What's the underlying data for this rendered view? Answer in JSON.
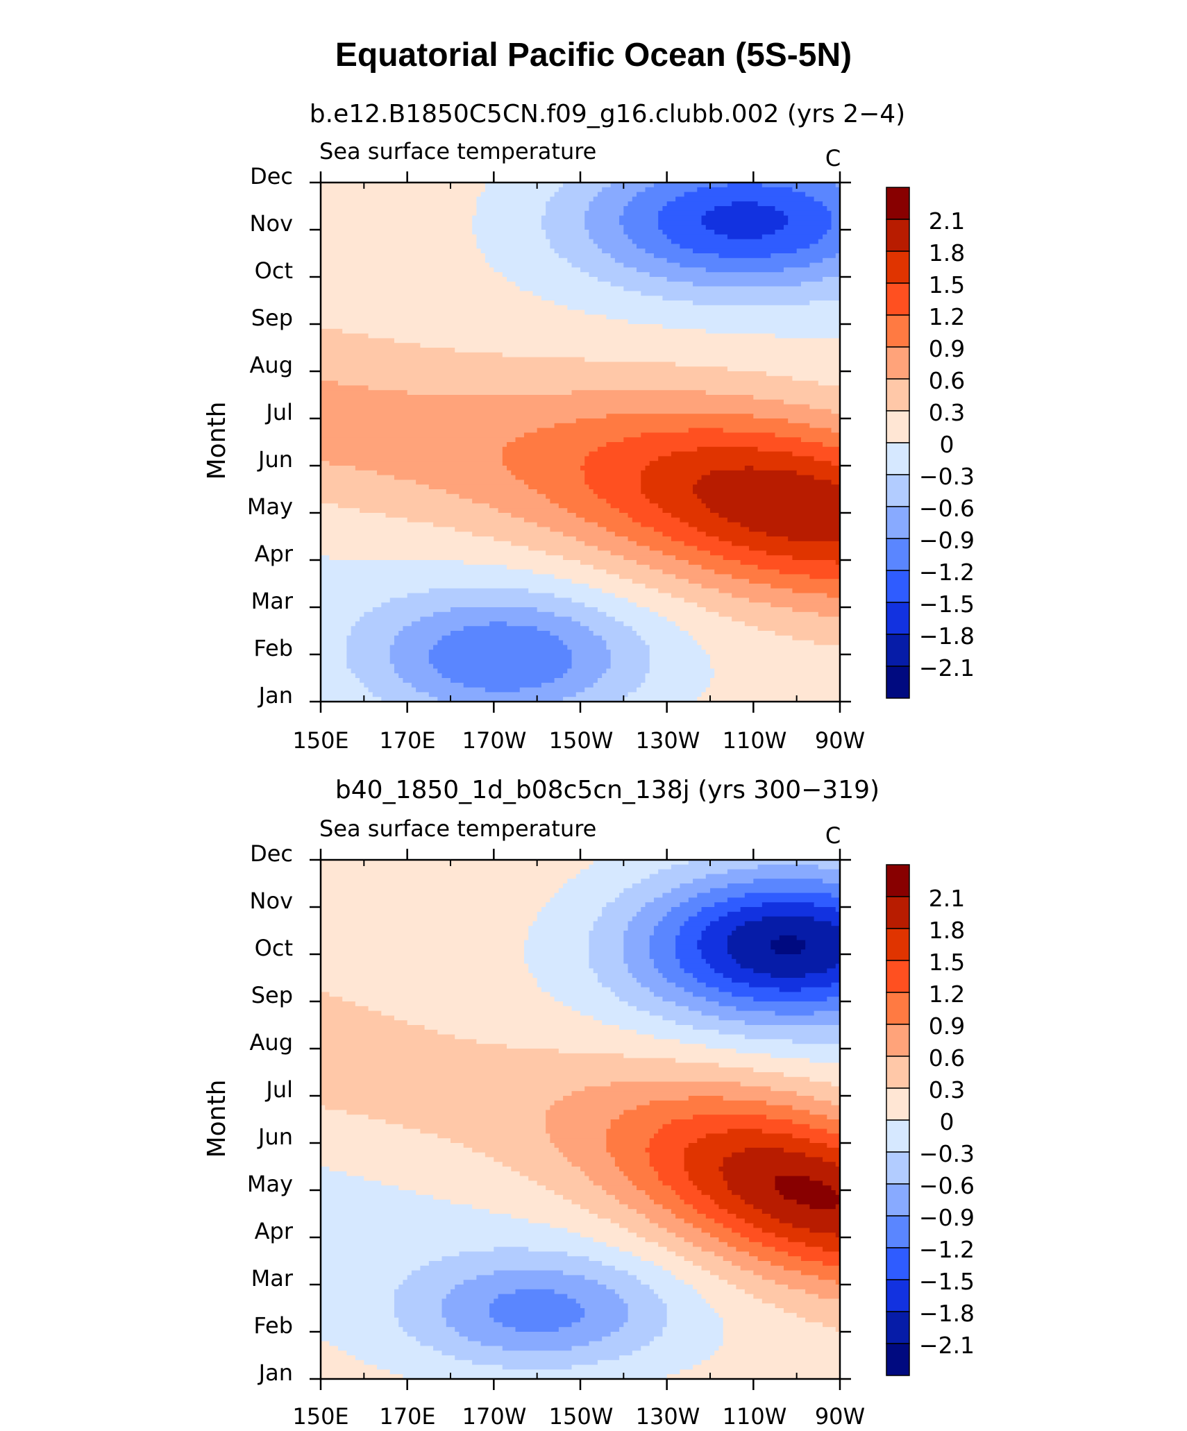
{
  "figure": {
    "title": "Equatorial Pacific Ocean (5S-5N)"
  },
  "chart_data": [
    {
      "type": "heatmap",
      "title": "b.e12.B1850C5CN.f09_g16.clubb.002 (yrs 2−4)",
      "variable": "Sea surface temperature",
      "units": "C",
      "ylabel": "Month",
      "xlabel": "",
      "x_ticks": [
        "150E",
        "170E",
        "170W",
        "150W",
        "130W",
        "110W",
        "90W"
      ],
      "y_ticks": [
        "Jan",
        "Feb",
        "Mar",
        "Apr",
        "May",
        "Jun",
        "Jul",
        "Aug",
        "Sep",
        "Oct",
        "Nov",
        "Dec"
      ],
      "xlim_degE": [
        150,
        270
      ],
      "ylim_month_index": [
        0,
        11
      ],
      "model": {
        "warm_peak": 2.2,
        "warm_month_at_150E": 5.8,
        "warm_month_at_90W": 4.0,
        "warm_width": 2.0,
        "warm_lon_center_degE": 258,
        "warm_lon_spread": 48,
        "warm_lon_floor": 0.38,
        "cool_late_peak": -1.75,
        "cool_late_month": 10.2,
        "cool_late_width": 1.5,
        "cool_late_lon_center_degE": 248,
        "cool_late_lon_spread": 40,
        "cool_early_peak": -1.25,
        "cool_early_month": 0.9,
        "cool_early_width": 1.4,
        "cool_early_lon_center_degE": 192,
        "cool_early_lon_spread": 32
      }
    },
    {
      "type": "heatmap",
      "title": "b40_1850_1d_b08c5cn_138j (yrs 300−319)",
      "variable": "Sea surface temperature",
      "units": "C",
      "ylabel": "Month",
      "xlabel": "",
      "x_ticks": [
        "150E",
        "170E",
        "170W",
        "150W",
        "130W",
        "110W",
        "90W"
      ],
      "y_ticks": [
        "Jan",
        "Feb",
        "Mar",
        "Apr",
        "May",
        "Jun",
        "Jul",
        "Aug",
        "Sep",
        "Oct",
        "Nov",
        "Dec"
      ],
      "xlim_degE": [
        150,
        270
      ],
      "ylim_month_index": [
        0,
        11
      ],
      "model": {
        "warm_peak": 2.3,
        "warm_month_at_150E": 6.6,
        "warm_month_at_90W": 3.8,
        "warm_width": 1.9,
        "warm_lon_center_degE": 262,
        "warm_lon_spread": 42,
        "warm_lon_floor": 0.22,
        "cool_late_peak": -2.25,
        "cool_late_month": 9.2,
        "cool_late_width": 1.6,
        "cool_late_lon_center_degE": 258,
        "cool_late_lon_spread": 36,
        "cool_early_peak": -1.05,
        "cool_early_month": 1.4,
        "cool_early_width": 1.2,
        "cool_early_lon_center_degE": 200,
        "cool_early_lon_spread": 30
      }
    }
  ],
  "colorbar": {
    "labels": [
      "2.1",
      "1.8",
      "1.5",
      "1.2",
      "0.9",
      "0.6",
      "0.3",
      "0",
      "−0.3",
      "−0.6",
      "−0.9",
      "−1.2",
      "−1.5",
      "−1.8",
      "−2.1"
    ],
    "levels": [
      2.1,
      1.8,
      1.5,
      1.2,
      0.9,
      0.6,
      0.3,
      0,
      -0.3,
      -0.6,
      -0.9,
      -1.2,
      -1.5,
      -1.8,
      -2.1
    ],
    "colors_top_to_bottom": [
      "#880000",
      "#b81c00",
      "#e03400",
      "#ff5020",
      "#ff7a42",
      "#ffa37a",
      "#ffc8a8",
      "#ffe6d4",
      "#d6e8ff",
      "#b2ccff",
      "#88aaff",
      "#5a86ff",
      "#2f5cff",
      "#1232e0",
      "#061ca8",
      "#000a80"
    ]
  }
}
